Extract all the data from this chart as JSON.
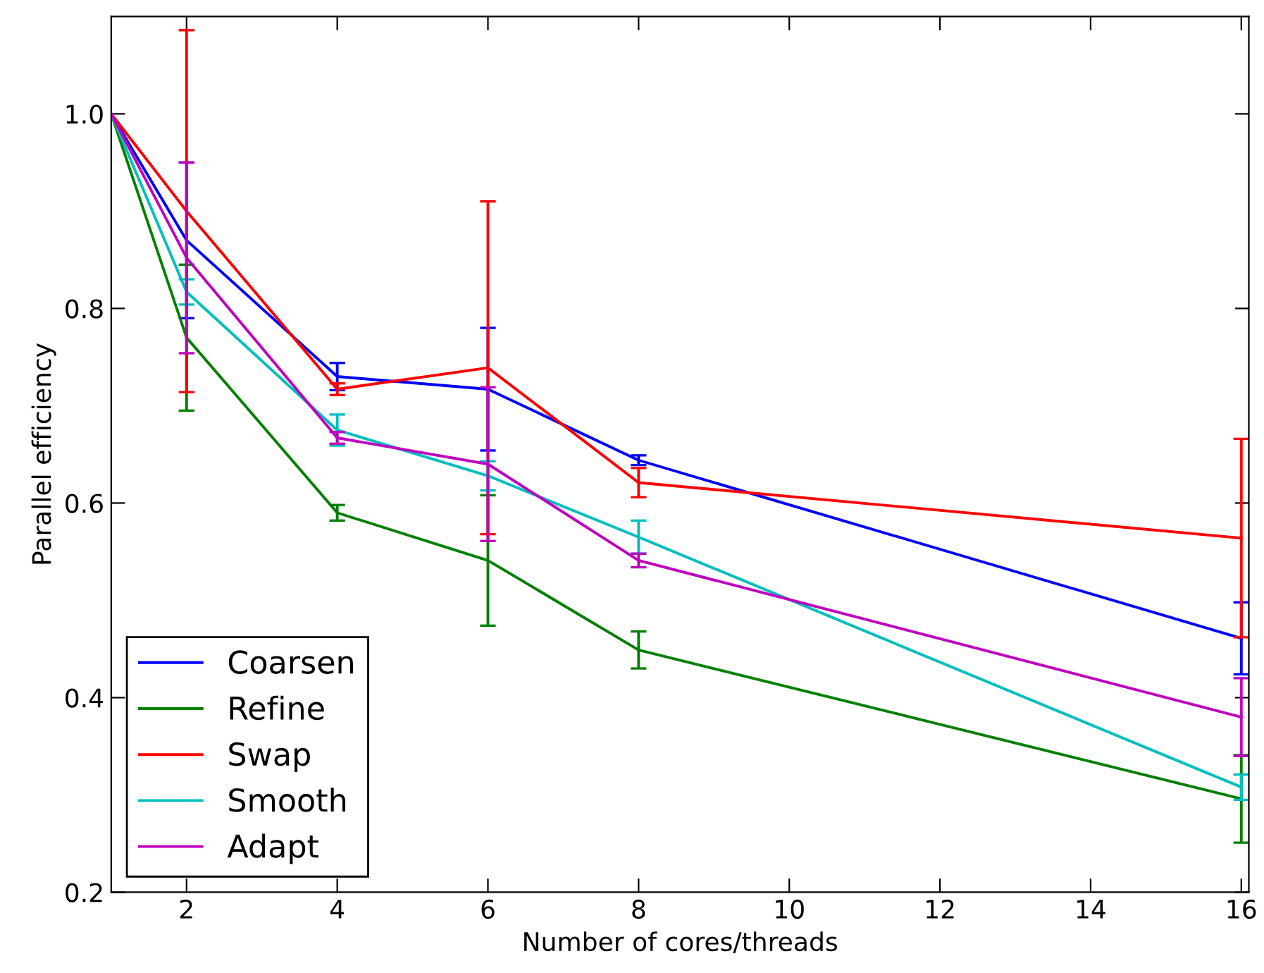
{
  "chart_data": {
    "type": "line",
    "xlabel": "Number of cores/threads",
    "ylabel": "Parallel efficiency",
    "x": [
      1,
      2,
      4,
      6,
      8,
      16
    ],
    "series": [
      {
        "name": "Coarsen",
        "color": "#0000ff",
        "values": [
          1.0,
          0.87,
          0.73,
          0.717,
          0.644,
          0.461
        ],
        "errors": [
          null,
          0.08,
          0.014,
          0.063,
          0.005,
          0.037
        ]
      },
      {
        "name": "Refine",
        "color": "#008000",
        "values": [
          1.0,
          0.77,
          0.59,
          0.541,
          0.449,
          0.296
        ],
        "errors": [
          null,
          0.075,
          0.008,
          0.067,
          0.019,
          0.045
        ]
      },
      {
        "name": "Swap",
        "color": "#ff0000",
        "values": [
          1.0,
          0.9,
          0.717,
          0.739,
          0.621,
          0.564
        ],
        "errors": [
          null,
          0.186,
          0.006,
          0.171,
          0.015,
          0.102
        ]
      },
      {
        "name": "Smooth",
        "color": "#00bfbf",
        "values": [
          1.0,
          0.817,
          0.675,
          0.628,
          0.565,
          0.308
        ],
        "errors": [
          null,
          0.013,
          0.016,
          0.015,
          0.017,
          0.013
        ]
      },
      {
        "name": "Adapt",
        "color": "#bf00bf",
        "values": [
          1.0,
          0.852,
          0.667,
          0.64,
          0.541,
          0.38
        ],
        "errors": [
          null,
          0.098,
          0.006,
          0.079,
          0.007,
          0.04
        ]
      }
    ],
    "xlim": [
      1,
      16.1
    ],
    "xticks": [
      2,
      4,
      6,
      8,
      10,
      12,
      14,
      16
    ],
    "ylim": [
      0.2,
      1.1
    ],
    "yticks": [
      {
        "value": 0.2,
        "label": "0.2"
      },
      {
        "value": 0.4,
        "label": "0.4"
      },
      {
        "value": 0.6,
        "label": "0.6"
      },
      {
        "value": 0.8,
        "label": "0.8"
      },
      {
        "value": 1.0,
        "label": "1.0"
      }
    ],
    "legend": "bottom left",
    "grid": false,
    "marker": "none",
    "line_style": "solid"
  }
}
